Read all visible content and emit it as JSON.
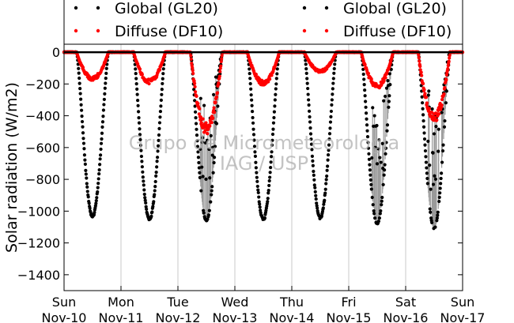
{
  "chart_data": {
    "type": "line",
    "ylabel": "Solar radiation (W/m2)",
    "xlabel": "",
    "ylim": [
      -1500,
      50
    ],
    "yticks": [
      0,
      -200,
      -400,
      -600,
      -800,
      -1000,
      -1200,
      -1400
    ],
    "xlim": [
      "2013-11-10 00:00",
      "2013-11-17 00:00"
    ],
    "x_tick_labels": [
      {
        "day": "Sun",
        "date": "Nov-10"
      },
      {
        "day": "Mon",
        "date": "Nov-11"
      },
      {
        "day": "Tue",
        "date": "Nov-12"
      },
      {
        "day": "Wed",
        "date": "Nov-13"
      },
      {
        "day": "Thu",
        "date": "Nov-14"
      },
      {
        "day": "Fri",
        "date": "Nov-15"
      },
      {
        "day": "Sat",
        "date": "Nov-16"
      },
      {
        "day": "Sun",
        "date": "Nov-17"
      }
    ],
    "grid": "vertical",
    "legend_placement": "top",
    "series": [
      {
        "name": "Global (GL20)",
        "color": "#000000",
        "marker": "dot",
        "daily_peak_values": [
          {
            "date": "Nov-10",
            "peak": -1040
          },
          {
            "date": "Nov-11",
            "peak": -1060
          },
          {
            "date": "Nov-12",
            "peak": -1060
          },
          {
            "date": "Nov-13",
            "peak": -1060
          },
          {
            "date": "Nov-14",
            "peak": -1050
          },
          {
            "date": "Nov-15",
            "peak": -1080
          },
          {
            "date": "Nov-16",
            "peak": -1110
          }
        ]
      },
      {
        "name": "Diffuse (DF10)",
        "color": "#ff0000",
        "marker": "dot",
        "daily_peak_values": [
          {
            "date": "Nov-10",
            "peak": -180
          },
          {
            "date": "Nov-11",
            "peak": -200
          },
          {
            "date": "Nov-12",
            "peak": -520
          },
          {
            "date": "Nov-13",
            "peak": -210
          },
          {
            "date": "Nov-14",
            "peak": -130
          },
          {
            "date": "Nov-15",
            "peak": -230
          },
          {
            "date": "Nov-16",
            "peak": -450
          }
        ]
      }
    ],
    "watermark": [
      "Grupo de Micrometeorologia",
      "IAG / USP"
    ]
  }
}
